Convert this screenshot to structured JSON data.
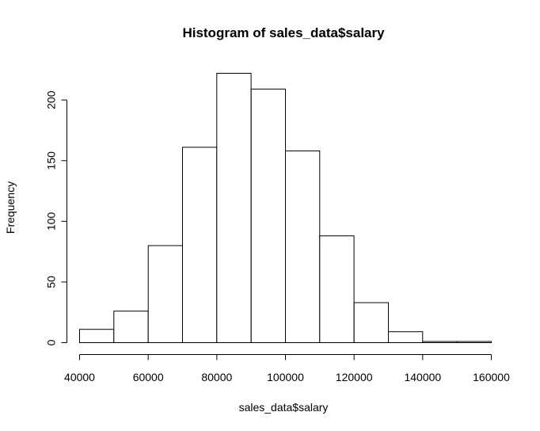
{
  "chart_data": {
    "type": "bar",
    "title": "Histogram of sales_data$salary",
    "xlabel": "sales_data$salary",
    "ylabel": "Frequency",
    "bins": [
      {
        "from": 40000,
        "to": 50000,
        "count": 11
      },
      {
        "from": 50000,
        "to": 60000,
        "count": 26
      },
      {
        "from": 60000,
        "to": 70000,
        "count": 80
      },
      {
        "from": 70000,
        "to": 80000,
        "count": 161
      },
      {
        "from": 80000,
        "to": 90000,
        "count": 222
      },
      {
        "from": 90000,
        "to": 100000,
        "count": 209
      },
      {
        "from": 100000,
        "to": 110000,
        "count": 158
      },
      {
        "from": 110000,
        "to": 120000,
        "count": 88
      },
      {
        "from": 120000,
        "to": 130000,
        "count": 33
      },
      {
        "from": 130000,
        "to": 140000,
        "count": 9
      },
      {
        "from": 140000,
        "to": 150000,
        "count": 1
      },
      {
        "from": 150000,
        "to": 160000,
        "count": 1
      }
    ],
    "xlim": [
      40000,
      160000
    ],
    "ylim": [
      0,
      222
    ],
    "xticks": [
      40000,
      60000,
      80000,
      100000,
      120000,
      140000,
      160000
    ],
    "yticks": [
      0,
      50,
      100,
      150,
      200
    ],
    "grid": false,
    "legend": "none"
  }
}
